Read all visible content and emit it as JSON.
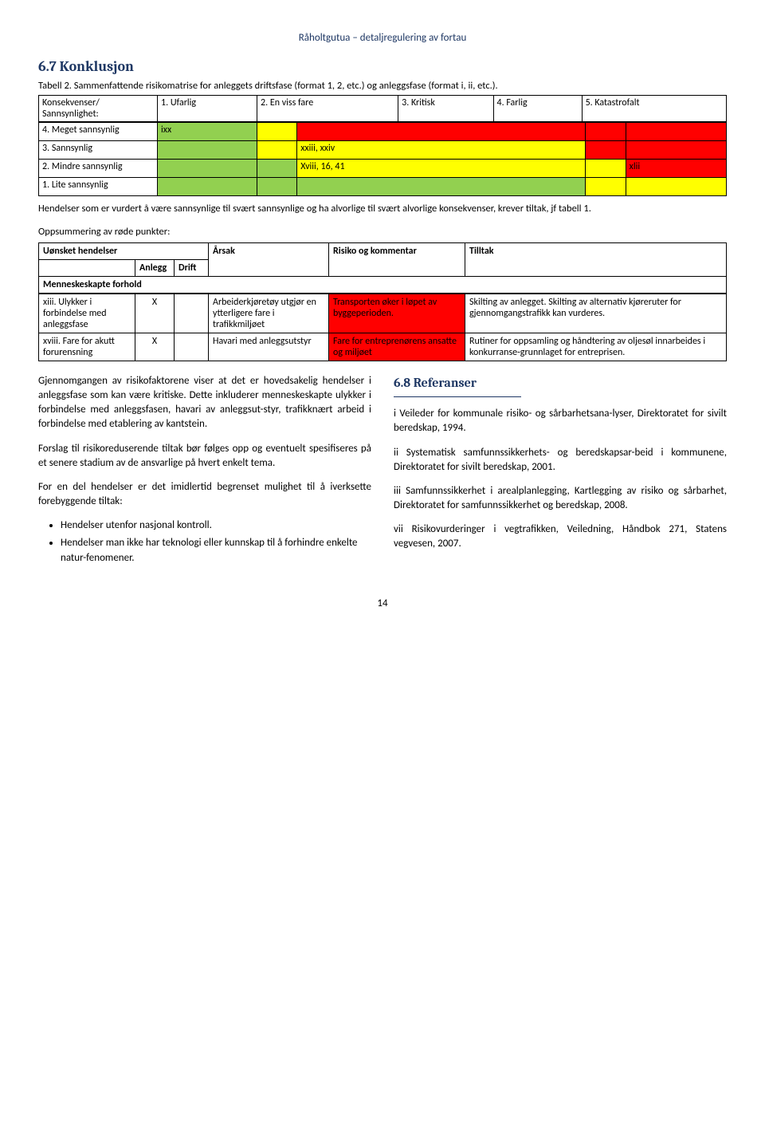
{
  "header": "Råholtgutua – detaljregulering av fortau",
  "section1_title": "6.7 Konklusjon",
  "tabell2_caption": "Tabell 2. Sammenfattende risikomatrise for anleggets driftsfase (format 1, 2, etc.) og anleggsfase (format i, ii, etc.).",
  "matrix": {
    "col_header": "Konsekvenser/ Sannsynlighet:",
    "cols": [
      "1. Ufarlig",
      "2. En viss fare",
      "3. Kritisk",
      "4. Farlig",
      "5. Katastrofalt"
    ],
    "rows": [
      {
        "label": "4. Meget sannsynlig",
        "cells": [
          {
            "text": "ixx",
            "class": "green"
          },
          {
            "text": "",
            "class": "yellow"
          },
          {
            "text": "",
            "class": "red"
          },
          {
            "text": "",
            "class": "red"
          },
          {
            "text": "",
            "class": "red"
          }
        ]
      },
      {
        "label": "3. Sannsynlig",
        "cells": [
          {
            "text": "",
            "class": "green"
          },
          {
            "text": "",
            "class": "yellow"
          },
          {
            "text": "xxiii, xxiv",
            "class": "yellow"
          },
          {
            "text": "",
            "class": "red"
          },
          {
            "text": "",
            "class": "red"
          }
        ]
      },
      {
        "label": "2. Mindre sannsynlig",
        "cells": [
          {
            "text": "",
            "class": "green"
          },
          {
            "text": "",
            "class": "green"
          },
          {
            "text": "Xviii, 16, 41",
            "class": "yellow"
          },
          {
            "text": "",
            "class": "yellow"
          },
          {
            "text": "xlii",
            "class": "red"
          }
        ]
      },
      {
        "label": "1. Lite sannsynlig",
        "cells": [
          {
            "text": "",
            "class": "green"
          },
          {
            "text": "",
            "class": "green"
          },
          {
            "text": "",
            "class": "green"
          },
          {
            "text": "",
            "class": "yellow"
          },
          {
            "text": "",
            "class": "yellow"
          }
        ]
      }
    ]
  },
  "para_after_matrix": "Hendelser som er vurdert å være sannsynlige til svært sannsynlige og ha alvorlige til svært alvorlige konsekvenser, krever tiltak, jf tabell 1.",
  "oppsummering_label": "Oppsummering av røde punkter:",
  "summary": {
    "h_uonsket": "Uønsket hendelser",
    "h_anlegg": "Anlegg",
    "h_drift": "Drift",
    "h_aarsak": "Årsak",
    "h_risiko": "Risiko og kommentar",
    "h_tiltak": "Tilltak",
    "mennesker": "Menneskeskapte forhold",
    "rows": [
      {
        "label": "xiii. Ulykker i forbindelse med anleggsfase",
        "anlegg": "X",
        "drift": "",
        "aarsak": "Arbeiderkjøretøy utgjør en ytterligere fare i trafikkmiljøet",
        "risiko": "Transporten øker i løpet av byggeperioden.",
        "tiltak": "Skilting av anlegget. Skilting av alternativ kjøreruter for gjennomgangstrafikk kan vurderes."
      },
      {
        "label": "xviii. Fare for akutt forurensning",
        "anlegg": "X",
        "drift": "",
        "aarsak": "Havari med anleggsutstyr",
        "risiko": "Fare for entreprenørens ansatte og miljøet",
        "tiltak": "Rutiner for oppsamling og håndtering av oljesøl innarbeides i konkurranse-grunnlaget for entreprisen."
      }
    ]
  },
  "left_col": {
    "p1": "Gjennomgangen av risikofaktorene viser at det er hovedsakelig hendelser i anleggsfase som kan være kritiske. Dette inkluderer menneskeskapte ulykker i forbindelse med anleggsfasen, havari av anleggsut-styr, trafikknært arbeid i forbindelse med etablering av kantstein.",
    "p2": "Forslag til risikoreduserende tiltak bør følges opp og eventuelt spesifiseres på et senere stadium av de ansvarlige på hvert enkelt tema.",
    "p3": "For en del hendelser er det imidlertid begrenset mulighet til å iverksette forebyggende tiltak:",
    "bullets": [
      "Hendelser utenfor nasjonal kontroll.",
      "Hendelser man ikke har teknologi eller kunnskap til å forhindre enkelte natur-fenomener."
    ]
  },
  "right_col": {
    "title": "6.8 Referanser",
    "refs": [
      "i Veileder for kommunale risiko- og sårbarhetsana-lyser, Direktoratet for sivilt beredskap, 1994.",
      "ii Systematisk samfunnssikkerhets- og beredskapsar-beid i kommunene, Direktoratet for sivilt beredskap, 2001.",
      "iii Samfunnssikkerhet i arealplanlegging, Kartlegging av risiko og sårbarhet, Direktoratet for samfunnssikkerhet og beredskap, 2008.",
      "vii Risikovurderinger i vegtrafikken, Veiledning, Håndbok 271, Statens vegvesen, 2007."
    ]
  },
  "page_number": "14"
}
